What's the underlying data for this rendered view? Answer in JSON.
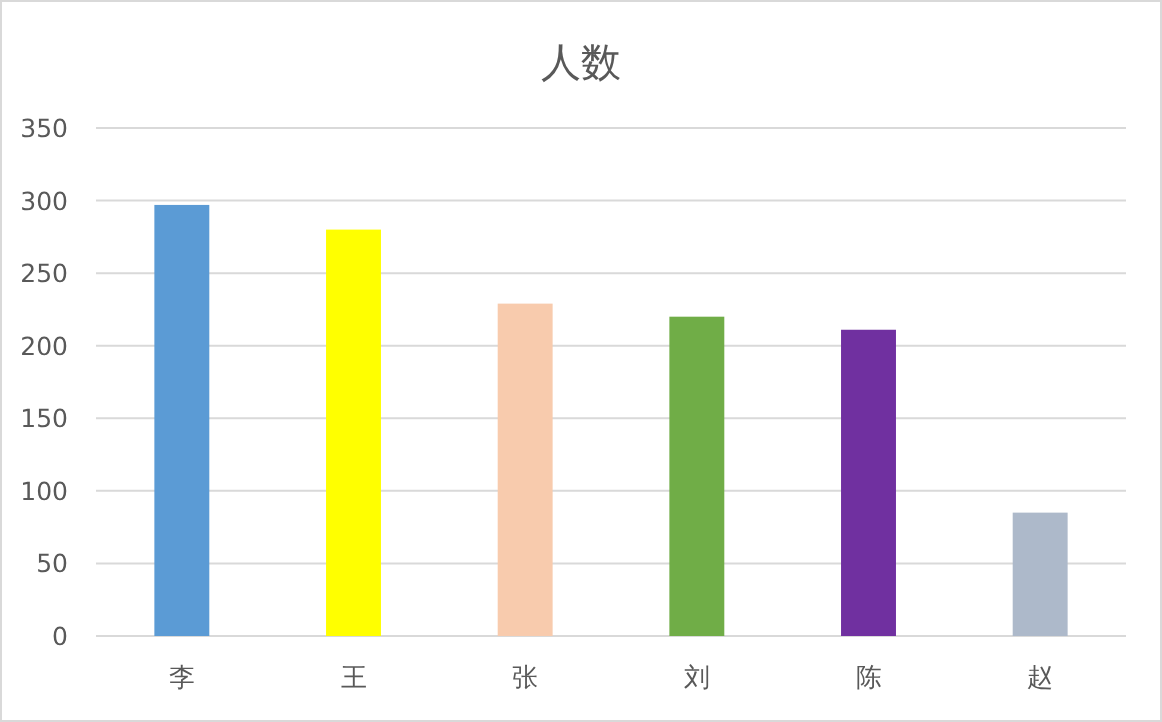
{
  "chart_data": {
    "type": "bar",
    "title": "人数",
    "categories": [
      "李",
      "王",
      "张",
      "刘",
      "陈",
      "赵"
    ],
    "values": [
      297,
      280,
      229,
      220,
      211,
      85
    ],
    "colors": [
      "#5b9bd5",
      "#ffff00",
      "#f8cbad",
      "#70ad47",
      "#7030a0",
      "#adb9ca"
    ],
    "ylim": [
      0,
      350
    ],
    "yticks": [
      0,
      50,
      100,
      150,
      200,
      250,
      300,
      350
    ],
    "grid": "y"
  }
}
